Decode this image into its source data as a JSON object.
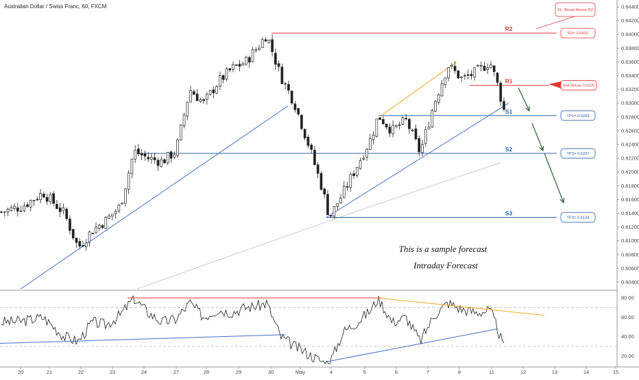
{
  "header": {
    "title": "Australian Dollar / Swiss Franc, 60, FXCM"
  },
  "annotations": {
    "line1": "This is a sample forecast",
    "line2": "Intraday Forecast"
  },
  "colors": {
    "resistance": "#e53935",
    "support": "#2962a8",
    "trend": "#3f6fc4",
    "orange": "#f5a623",
    "arrow": "#2e5e2e",
    "ma": "#c9c9c9",
    "candle_up": "#ffffff",
    "candle_down": "#222222",
    "wick": "#222222",
    "rsi_line": "#333333"
  },
  "levels": [
    {
      "name": "R2",
      "price": 0.6402,
      "color": "resistance"
    },
    {
      "name": "R1",
      "price": 0.6326,
      "color": "resistance"
    },
    {
      "name": "S1",
      "price": 0.6282,
      "color": "support"
    },
    {
      "name": "S2",
      "price": 0.6227,
      "color": "support"
    },
    {
      "name": "S3",
      "price": 0.6134,
      "color": "support"
    }
  ],
  "callouts": [
    {
      "text": "SL: Break Above R2",
      "color": "resistance",
      "price": 0.6443
    },
    {
      "text": "R2= 0.6402",
      "color": "resistance",
      "price": 0.6402
    },
    {
      "text": "Sell Below 0.6326",
      "color": "resistance",
      "price": 0.6326
    },
    {
      "text": "TP1= 0.6282",
      "color": "support",
      "price": 0.6282
    },
    {
      "text": "TP2= 0.6227",
      "color": "support",
      "price": 0.6227
    },
    {
      "text": "TP3= 0.6134",
      "color": "support",
      "price": 0.6134
    }
  ],
  "chart_data": {
    "type": "candlestick",
    "price_axis": {
      "min": 0.603,
      "max": 0.6448,
      "ticks": [
        "0.64400",
        "0.64200",
        "0.64000",
        "0.63800",
        "0.63600",
        "0.63400",
        "0.63200",
        "0.63000",
        "0.62800",
        "0.62600",
        "0.62400",
        "0.62200",
        "0.62000",
        "0.61800",
        "0.61600",
        "0.61400",
        "0.61200",
        "0.61000",
        "0.60800",
        "0.60600",
        "0.60400"
      ]
    },
    "rsi_axis": {
      "min": 10,
      "max": 85,
      "ticks": [
        "80.00",
        "60.00",
        "40.00",
        "20.00"
      ],
      "guides": [
        70,
        30
      ]
    },
    "date_ticks": [
      "20",
      "21",
      "22",
      "23",
      "24",
      "27",
      "28",
      "29",
      "30",
      "May",
      "4",
      "5",
      "6",
      "7",
      "8",
      "11",
      "12",
      "13",
      "14",
      "15"
    ],
    "anchors": [
      {
        "x": 0,
        "price": 0.6142,
        "rsi": 55
      },
      {
        "x": 3,
        "price": 0.615,
        "rsi": 56
      },
      {
        "x": 6,
        "price": 0.617,
        "rsi": 60
      },
      {
        "x": 9,
        "price": 0.614,
        "rsi": 40
      },
      {
        "x": 11,
        "price": 0.609,
        "rsi": 35
      },
      {
        "x": 13,
        "price": 0.6115,
        "rsi": 55
      },
      {
        "x": 15,
        "price": 0.613,
        "rsi": 52
      },
      {
        "x": 17,
        "price": 0.615,
        "rsi": 62
      },
      {
        "x": 19,
        "price": 0.623,
        "rsi": 80
      },
      {
        "x": 21,
        "price": 0.622,
        "rsi": 65
      },
      {
        "x": 23,
        "price": 0.6215,
        "rsi": 55
      },
      {
        "x": 25,
        "price": 0.623,
        "rsi": 58
      },
      {
        "x": 27,
        "price": 0.632,
        "rsi": 75
      },
      {
        "x": 29,
        "price": 0.63,
        "rsi": 60
      },
      {
        "x": 31,
        "price": 0.633,
        "rsi": 68
      },
      {
        "x": 33,
        "price": 0.635,
        "rsi": 65
      },
      {
        "x": 35,
        "price": 0.636,
        "rsi": 70
      },
      {
        "x": 37,
        "price": 0.6385,
        "rsi": 72
      },
      {
        "x": 38,
        "price": 0.64,
        "rsi": 75
      },
      {
        "x": 40,
        "price": 0.634,
        "rsi": 40
      },
      {
        "x": 42,
        "price": 0.63,
        "rsi": 30
      },
      {
        "x": 44,
        "price": 0.624,
        "rsi": 22
      },
      {
        "x": 46,
        "price": 0.6175,
        "rsi": 14
      },
      {
        "x": 47,
        "price": 0.6134,
        "rsi": 12
      },
      {
        "x": 49,
        "price": 0.617,
        "rsi": 45
      },
      {
        "x": 51,
        "price": 0.621,
        "rsi": 55
      },
      {
        "x": 53,
        "price": 0.625,
        "rsi": 68
      },
      {
        "x": 54,
        "price": 0.6282,
        "rsi": 80
      },
      {
        "x": 56,
        "price": 0.626,
        "rsi": 55
      },
      {
        "x": 58,
        "price": 0.6275,
        "rsi": 60
      },
      {
        "x": 60,
        "price": 0.6228,
        "rsi": 35
      },
      {
        "x": 62,
        "price": 0.63,
        "rsi": 62
      },
      {
        "x": 64,
        "price": 0.6355,
        "rsi": 75
      },
      {
        "x": 66,
        "price": 0.6335,
        "rsi": 68
      },
      {
        "x": 68,
        "price": 0.6345,
        "rsi": 65
      },
      {
        "x": 70,
        "price": 0.636,
        "rsi": 67
      },
      {
        "x": 71,
        "price": 0.633,
        "rsi": 50
      },
      {
        "x": 72,
        "price": 0.629,
        "rsi": 28
      }
    ]
  }
}
